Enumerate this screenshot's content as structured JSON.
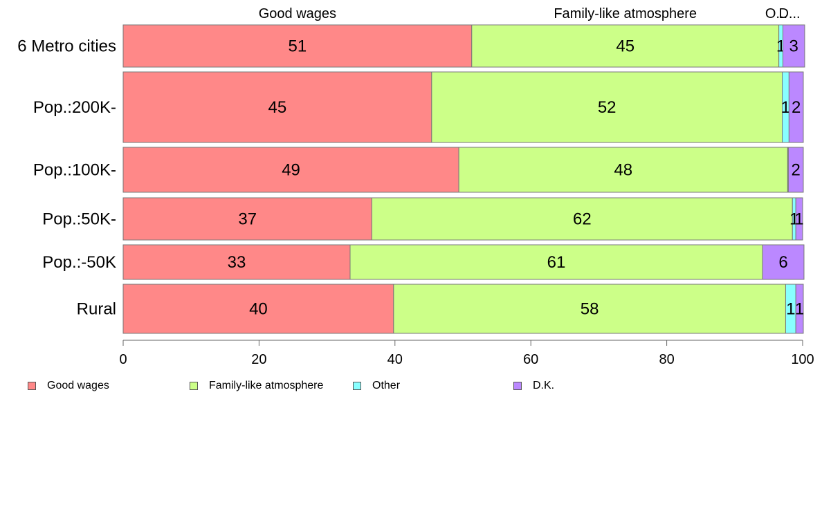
{
  "chart_data": {
    "type": "bar",
    "orientation": "horizontal",
    "stacked": true,
    "categories": [
      "6 Metro cities",
      "Pop.:200K-",
      "Pop.:100K-",
      "Pop.:50K-",
      "Pop.:-50K",
      "Rural"
    ],
    "series": [
      {
        "name": "Good wages",
        "color": "#ff8888",
        "values": [
          51.3,
          45.4,
          49.4,
          36.6,
          33.4,
          39.8
        ],
        "labels": [
          "51",
          "45",
          "49",
          "37",
          "33",
          "40"
        ]
      },
      {
        "name": "Family-like atmosphere",
        "color": "#ccff88",
        "values": [
          45.2,
          51.6,
          48.4,
          61.9,
          60.7,
          57.7
        ],
        "labels": [
          "45",
          "52",
          "48",
          "62",
          "61",
          "58"
        ]
      },
      {
        "name": "Other",
        "color": "#88ffff",
        "values": [
          0.6,
          1.0,
          0.1,
          0.5,
          0.0,
          1.5
        ],
        "labels": [
          "1",
          "1",
          "",
          "1",
          "",
          "1"
        ]
      },
      {
        "name": "D.K.",
        "color": "#bb88ff",
        "values": [
          3.2,
          2.1,
          2.2,
          1.0,
          6.1,
          1.1
        ],
        "labels": [
          "3",
          "2",
          "2",
          "1",
          "6",
          "1"
        ]
      }
    ],
    "top_labels": [
      "Good wages",
      "Family-like atmosphere",
      "O...",
      "D..."
    ],
    "xlim": [
      0,
      100
    ],
    "xticks": [
      "0",
      "20",
      "40",
      "60",
      "80",
      "100"
    ],
    "title": "",
    "xlabel": "",
    "ylabel": "",
    "grid": false,
    "legend_position": "bottom-left"
  }
}
